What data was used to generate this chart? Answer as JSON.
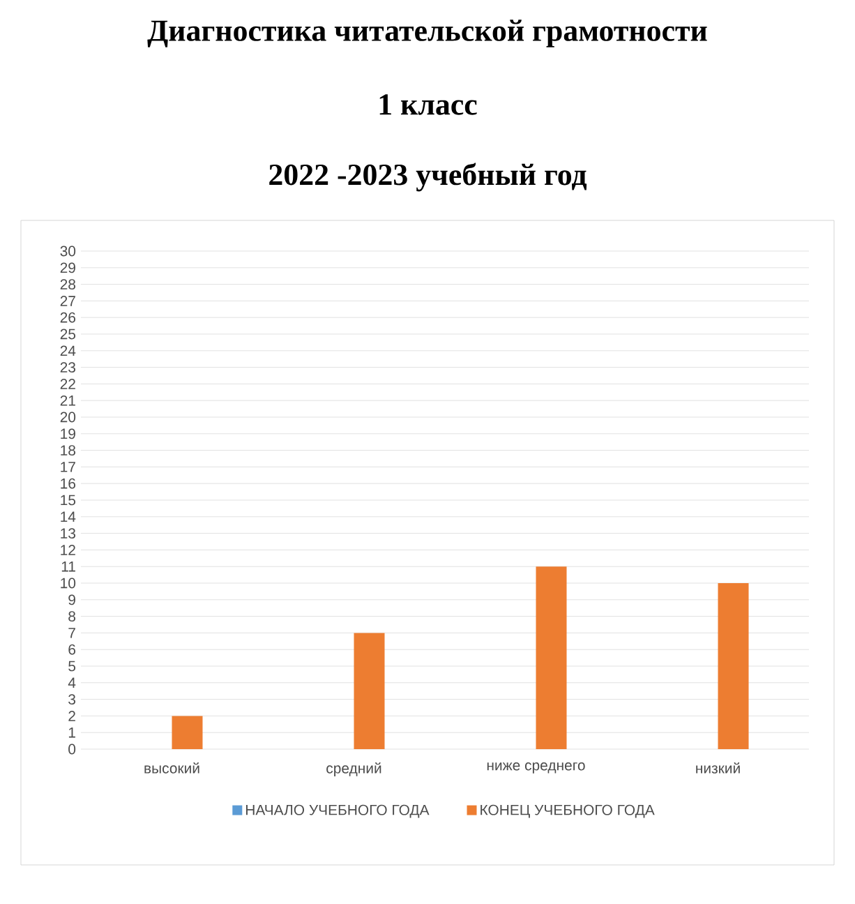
{
  "chart_data": {
    "type": "bar",
    "title": "Диагностика читательской грамотности",
    "subtitle": "1 класс",
    "annotations": [
      "2022 -2023 учебный год"
    ],
    "categories": [
      "высокий",
      "средний",
      "ниже среднего",
      "низкий"
    ],
    "series": [
      {
        "name": "НАЧАЛО УЧЕБНОГО ГОДА",
        "color": "#5b9bd5",
        "values": [
          0,
          0,
          0,
          0
        ]
      },
      {
        "name": "КОНЕЦ УЧЕБНОГО ГОДА",
        "color": "#ed7d31",
        "values": [
          2,
          7,
          11,
          10
        ]
      }
    ],
    "ylim": [
      0,
      30
    ],
    "yticks": [
      0,
      1,
      2,
      3,
      4,
      5,
      6,
      7,
      8,
      9,
      10,
      11,
      12,
      13,
      14,
      15,
      16,
      17,
      18,
      19,
      20,
      21,
      22,
      23,
      24,
      25,
      26,
      27,
      28,
      29,
      30
    ],
    "grid": "y",
    "legend": "bottom"
  }
}
